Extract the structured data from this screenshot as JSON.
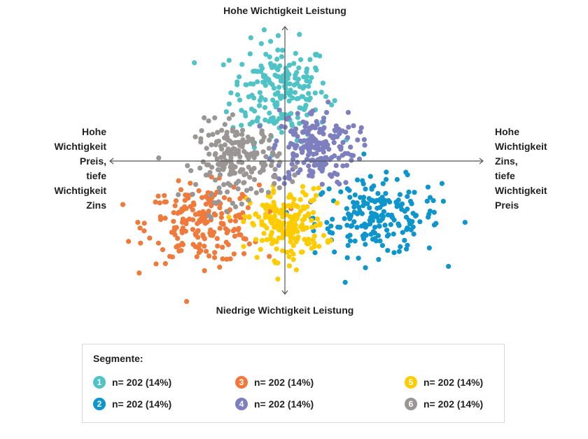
{
  "chart_data": {
    "type": "scatter",
    "labels": {
      "top": "Hohe Wichtigkeit Leistung",
      "bottom": "Niedrige Wichtigkeit Leistung",
      "left": [
        "Hohe",
        "Wichtigkeit",
        "Preis,",
        "tiefe",
        "Wichtigkeit",
        "Zins"
      ],
      "right": [
        "Hohe",
        "Wichtigkeit",
        "Zins,",
        "tiefe",
        "Wichtigkeit",
        "Preis"
      ]
    },
    "xlim": [
      -1,
      1.13
    ],
    "ylim": [
      -0.76,
      0.77
    ],
    "grid": false,
    "axes": "crosshair with arrows",
    "series": [
      {
        "id": "1",
        "color": "#4fc3c6",
        "n": 202,
        "center": [
          -0.03,
          0.4
        ],
        "spread": [
          0.14,
          0.14
        ]
      },
      {
        "id": "2",
        "color": "#0e96cc",
        "n": 202,
        "center": [
          0.53,
          -0.32
        ],
        "spread": [
          0.18,
          0.11
        ]
      },
      {
        "id": "3",
        "color": "#f07a3b",
        "n": 202,
        "center": [
          -0.47,
          -0.36
        ],
        "spread": [
          0.16,
          0.11
        ]
      },
      {
        "id": "4",
        "color": "#7e7fbf",
        "n": 202,
        "center": [
          0.17,
          0.08
        ],
        "spread": [
          0.12,
          0.11
        ]
      },
      {
        "id": "5",
        "color": "#ffcc00",
        "n": 202,
        "center": [
          0.01,
          -0.36
        ],
        "spread": [
          0.11,
          0.1
        ]
      },
      {
        "id": "6",
        "color": "#9a9696",
        "n": 202,
        "center": [
          -0.27,
          0.0
        ],
        "spread": [
          0.12,
          0.11
        ]
      }
    ]
  },
  "legend": {
    "title": "Segmente:",
    "items": [
      {
        "num": "1",
        "text": "n= 202 (14%)",
        "color": "#4fc3c6"
      },
      {
        "num": "2",
        "text": "n= 202 (14%)",
        "color": "#0e96cc"
      },
      {
        "num": "3",
        "text": "n= 202 (14%)",
        "color": "#f07a3b"
      },
      {
        "num": "4",
        "text": "n= 202 (14%)",
        "color": "#7e7fbf"
      },
      {
        "num": "5",
        "text": "n= 202 (14%)",
        "color": "#ffcc00"
      },
      {
        "num": "6",
        "text": "n= 202 (14%)",
        "color": "#9a9696"
      }
    ]
  }
}
